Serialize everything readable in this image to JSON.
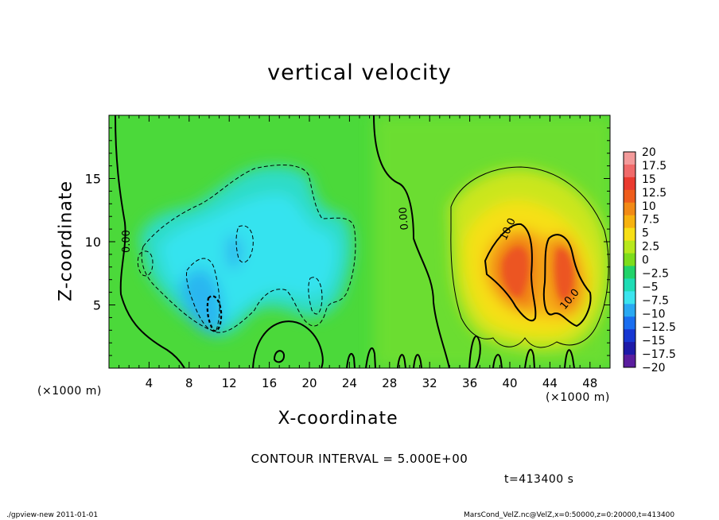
{
  "chart_data": {
    "type": "heatmap",
    "title": "vertical velocity",
    "xlabel": "X-coordinate",
    "ylabel": "Z-coordinate",
    "x_unit": "(×1000 m)",
    "y_unit": "(×1000 m)",
    "xlim": [
      0,
      50
    ],
    "ylim": [
      0,
      20
    ],
    "x_ticks": [
      "4",
      "8",
      "12",
      "16",
      "20",
      "24",
      "28",
      "32",
      "36",
      "40",
      "44",
      "48"
    ],
    "y_ticks": [
      "5",
      "10",
      "15"
    ],
    "colorbar": {
      "labels": [
        "20",
        "17.5",
        "15",
        "12.5",
        "10",
        "7.5",
        "5",
        "2.5",
        "0",
        "-2.5",
        "-5",
        "-7.5",
        "-10",
        "-12.5",
        "-15",
        "-17.5",
        "-20"
      ],
      "colors": [
        "#f39a9a",
        "#f06a6a",
        "#ea3a2f",
        "#ef5d1c",
        "#f28a16",
        "#f7b20f",
        "#f7df16",
        "#b8e81c",
        "#7ddd1c",
        "#22d36a",
        "#1fdcb5",
        "#3ce4ee",
        "#2aa9f2",
        "#1a6ef0",
        "#1737d2",
        "#1e1aa8",
        "#5a1d9e"
      ]
    },
    "contour_labels": [
      "0.00",
      "0.00",
      "10.0",
      "10.0"
    ],
    "contour_interval": "CONTOUR INTERVAL = 5.000E+00",
    "time": "t=413400 s"
  },
  "footer": {
    "left": "./gpview-new   2011-01-01",
    "right": "MarsCond_VelZ.nc@VelZ,x=0:50000,z=0:20000,t=413400"
  }
}
